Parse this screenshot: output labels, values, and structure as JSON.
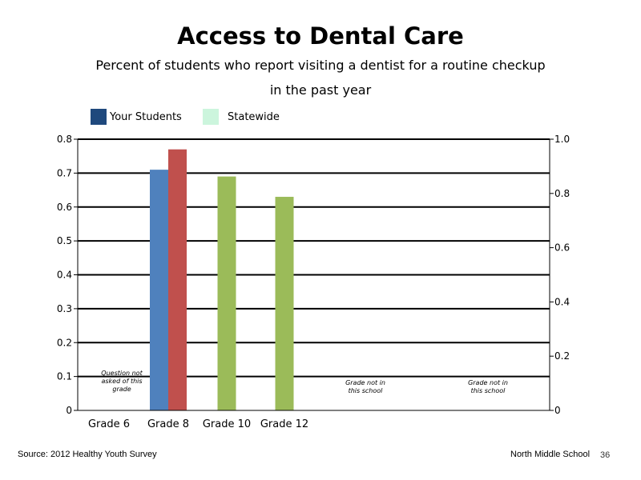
{
  "chart_data": {
    "type": "bar",
    "title": "Access to Dental Care",
    "subtitle_line1": "Percent of students who report visiting a dentist for a routine checkup",
    "subtitle_line2": "in the past year",
    "categories": [
      "Grade 6",
      "Grade 8",
      "Grade 10",
      "Grade 12"
    ],
    "series": [
      {
        "name": "Your Students",
        "legend_color": "#1f497d",
        "bar_color": "#4f81bd",
        "values": [
          null,
          0.71,
          null,
          null
        ]
      },
      {
        "name": "Statewide",
        "legend_color": "#ccf5dd",
        "bar_color": "#c0504d",
        "values": [
          null,
          0.77,
          null,
          null
        ]
      },
      {
        "name": "",
        "bar_color": "#9bbb59",
        "values": [
          null,
          null,
          0.69,
          0.63
        ]
      }
    ],
    "y_left": {
      "min": 0,
      "max": 0.8,
      "ticks": [
        "0",
        "0.1",
        "0.2",
        "0.3",
        "0.4",
        "0.5",
        "0.6",
        "0.7",
        "0.8"
      ]
    },
    "y_right": {
      "min": 0,
      "max": 1.0,
      "ticks": [
        "0",
        "0.2",
        "0.4",
        "0.6",
        "0.8",
        "1.0"
      ]
    },
    "gridlines": true,
    "legend_position": "top-left",
    "annotations": [
      {
        "lines": [
          "Question not",
          "asked of this",
          "grade"
        ]
      },
      {
        "lines": [
          "Grade not in",
          "this school"
        ]
      },
      {
        "lines": [
          "Grade not in",
          "this school"
        ]
      }
    ]
  },
  "footer": {
    "source": "Source: 2012 Healthy Youth Survey",
    "school": "North Middle  School",
    "page_number": "36"
  }
}
